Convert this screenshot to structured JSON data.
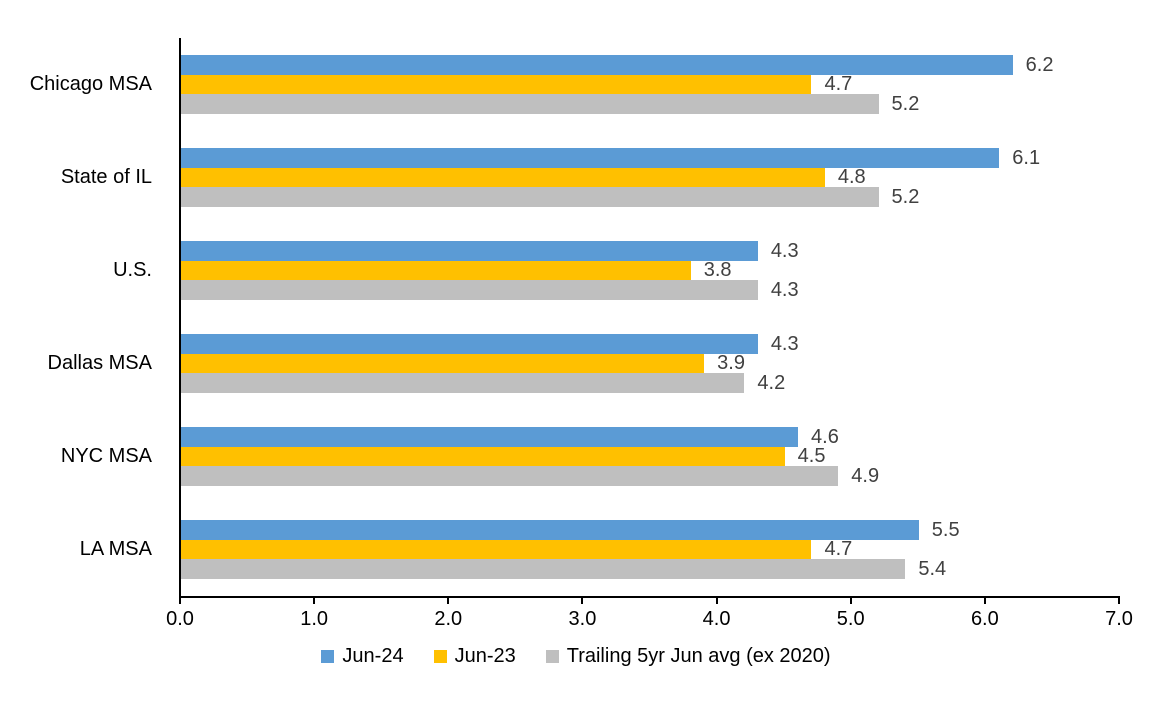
{
  "chart_data": {
    "type": "bar",
    "orientation": "horizontal",
    "title": "",
    "categories": [
      "Chicago MSA",
      "State of IL",
      "U.S.",
      "Dallas MSA",
      "NYC MSA",
      "LA MSA"
    ],
    "series": [
      {
        "name": "Jun-24",
        "color": "#5B9BD5",
        "values": [
          6.2,
          6.1,
          4.3,
          4.3,
          4.6,
          5.5
        ]
      },
      {
        "name": "Jun-23",
        "color": "#FFC000",
        "values": [
          4.7,
          4.8,
          3.8,
          3.9,
          4.5,
          4.7
        ]
      },
      {
        "name": "Trailing 5yr Jun avg (ex 2020)",
        "color": "#BFBFBF",
        "values": [
          5.2,
          5.2,
          4.3,
          4.2,
          4.9,
          5.4
        ]
      }
    ],
    "x_axis": {
      "min": 0,
      "max": 7,
      "tick_interval": 1,
      "tick_labels": [
        "0.0",
        "1.0",
        "2.0",
        "3.0",
        "4.0",
        "5.0",
        "6.0",
        "7.0"
      ]
    },
    "data_labels": true,
    "data_label_format": "0.0",
    "legend_position": "bottom",
    "grid": false,
    "colors": {
      "axis_line": "#000000",
      "axis_text": "#000000",
      "data_label_text": "#404040",
      "background": "#FFFFFF"
    }
  }
}
